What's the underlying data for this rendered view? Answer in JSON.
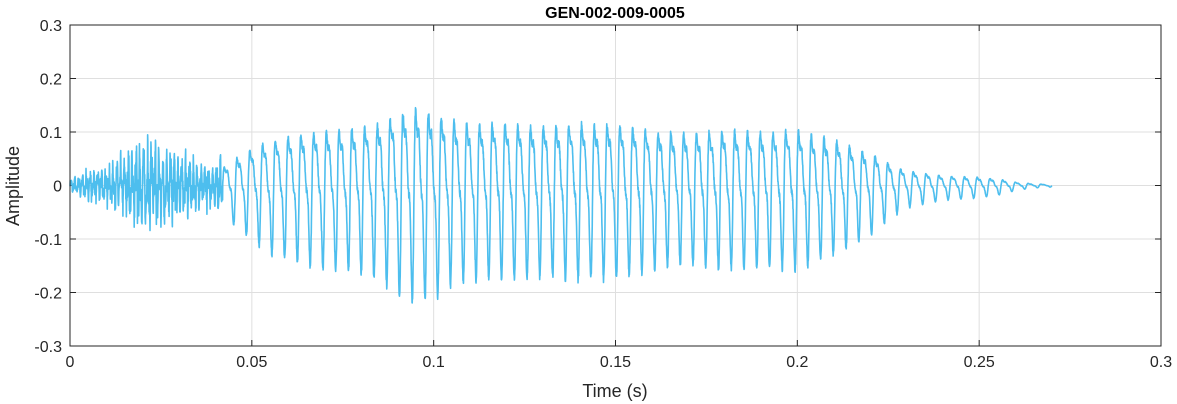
{
  "chart_data": {
    "type": "line",
    "title": "GEN-002-009-0005",
    "xlabel": "Time (s)",
    "ylabel": "Amplitude",
    "xlim": [
      0,
      0.3
    ],
    "ylim": [
      -0.3,
      0.3
    ],
    "xticks": [
      "0",
      "0.05",
      "0.1",
      "0.15",
      "0.2",
      "0.25",
      "0.3"
    ],
    "yticks": [
      "0.3",
      "0.2",
      "0.1",
      "0",
      "-0.1",
      "-0.2",
      "-0.3"
    ],
    "grid": true,
    "series_color": "#4DBEEE",
    "series": [
      {
        "x_start": 0,
        "x_end": 0.27,
        "envelope": [
          [
            0.0,
            0.01
          ],
          [
            0.005,
            0.025
          ],
          [
            0.01,
            0.03
          ],
          [
            0.015,
            0.05
          ],
          [
            0.02,
            0.075
          ],
          [
            0.025,
            0.07
          ],
          [
            0.03,
            0.055
          ],
          [
            0.035,
            0.04
          ],
          [
            0.04,
            0.035
          ],
          [
            0.045,
            0.08
          ],
          [
            0.05,
            0.11
          ],
          [
            0.055,
            0.14
          ],
          [
            0.06,
            0.15
          ],
          [
            0.065,
            0.16
          ],
          [
            0.07,
            0.17
          ],
          [
            0.075,
            0.17
          ],
          [
            0.08,
            0.18
          ],
          [
            0.085,
            0.19
          ],
          [
            0.09,
            0.22
          ],
          [
            0.095,
            0.235
          ],
          [
            0.1,
            0.23
          ],
          [
            0.105,
            0.2
          ],
          [
            0.11,
            0.19
          ],
          [
            0.12,
            0.19
          ],
          [
            0.13,
            0.185
          ],
          [
            0.14,
            0.19
          ],
          [
            0.15,
            0.19
          ],
          [
            0.16,
            0.17
          ],
          [
            0.17,
            0.16
          ],
          [
            0.18,
            0.17
          ],
          [
            0.19,
            0.165
          ],
          [
            0.2,
            0.17
          ],
          [
            0.21,
            0.14
          ],
          [
            0.215,
            0.12
          ],
          [
            0.22,
            0.1
          ],
          [
            0.225,
            0.07
          ],
          [
            0.23,
            0.045
          ],
          [
            0.24,
            0.03
          ],
          [
            0.25,
            0.025
          ],
          [
            0.255,
            0.02
          ],
          [
            0.26,
            0.01
          ],
          [
            0.265,
            0.005
          ],
          [
            0.27,
            0.003
          ]
        ]
      }
    ]
  }
}
